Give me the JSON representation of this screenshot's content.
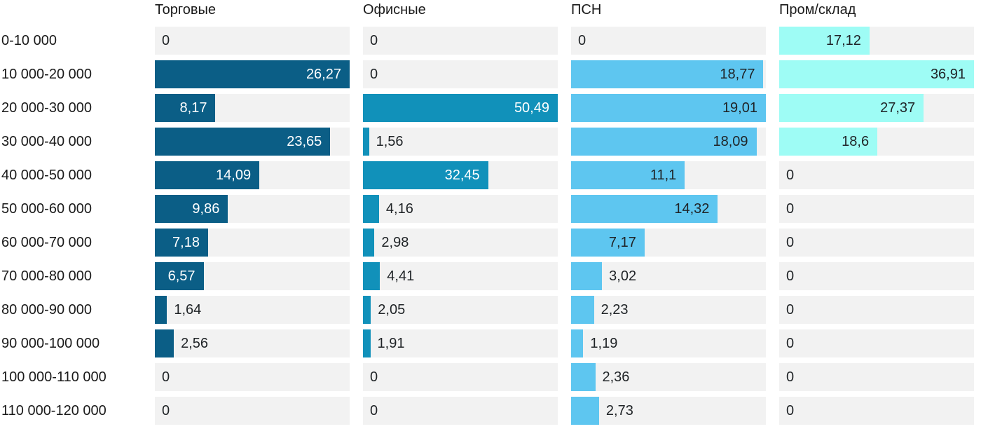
{
  "chart_data": {
    "type": "bar",
    "orientation": "horizontal",
    "title": "",
    "xlabel": "",
    "ylabel": "",
    "legend": false,
    "grid": false,
    "scaling": "each column normalized to its own max value",
    "value_decimal_separator": ",",
    "track_color": "#f2f2f2",
    "text_color": "#1a1a1a",
    "categories": [
      "0-10 000",
      "10 000-20 000",
      "20 000-30 000",
      "30 000-40 000",
      "40 000-50 000",
      "50 000-60 000",
      "60 000-70 000",
      "70 000-80 000",
      "80 000-90 000",
      "90 000-100 000",
      "100 000-110 000",
      "110 000-120 000"
    ],
    "series": [
      {
        "name": "Торговые",
        "color": "#0b5e86",
        "label_color_in_bar": "#ffffff",
        "values": [
          0,
          26.27,
          8.17,
          23.65,
          14.09,
          9.86,
          7.18,
          6.57,
          1.64,
          2.56,
          0,
          0
        ],
        "labels": [
          "0",
          "26,27",
          "8,17",
          "23,65",
          "14,09",
          "9,86",
          "7,18",
          "6,57",
          "1,64",
          "2,56",
          "0",
          "0"
        ]
      },
      {
        "name": "Офисные",
        "color": "#1191ba",
        "label_color_in_bar": "#ffffff",
        "values": [
          0,
          0,
          50.49,
          1.56,
          32.45,
          4.16,
          2.98,
          4.41,
          2.05,
          1.91,
          0,
          0
        ],
        "labels": [
          "0",
          "0",
          "50,49",
          "1,56",
          "32,45",
          "4,16",
          "2,98",
          "4,41",
          "2,05",
          "1,91",
          "0",
          "0"
        ]
      },
      {
        "name": "ПСН",
        "color": "#5ec6f0",
        "label_color_in_bar": "#1f2326",
        "values": [
          0,
          18.77,
          19.01,
          18.09,
          11.1,
          14.32,
          7.17,
          3.02,
          2.23,
          1.19,
          2.36,
          2.73
        ],
        "labels": [
          "0",
          "18,77",
          "19,01",
          "18,09",
          "11,1",
          "14,32",
          "7,17",
          "3,02",
          "2,23",
          "1,19",
          "2,36",
          "2,73"
        ]
      },
      {
        "name": "Пром/склад",
        "color": "#9efcf5",
        "label_color_in_bar": "#1f2326",
        "values": [
          17.12,
          36.91,
          27.37,
          18.6,
          0,
          0,
          0,
          0,
          0,
          0,
          0,
          0
        ],
        "labels": [
          "17,12",
          "36,91",
          "27,37",
          "18,6",
          "0",
          "0",
          "0",
          "0",
          "0",
          "0",
          "0",
          "0"
        ]
      }
    ]
  }
}
